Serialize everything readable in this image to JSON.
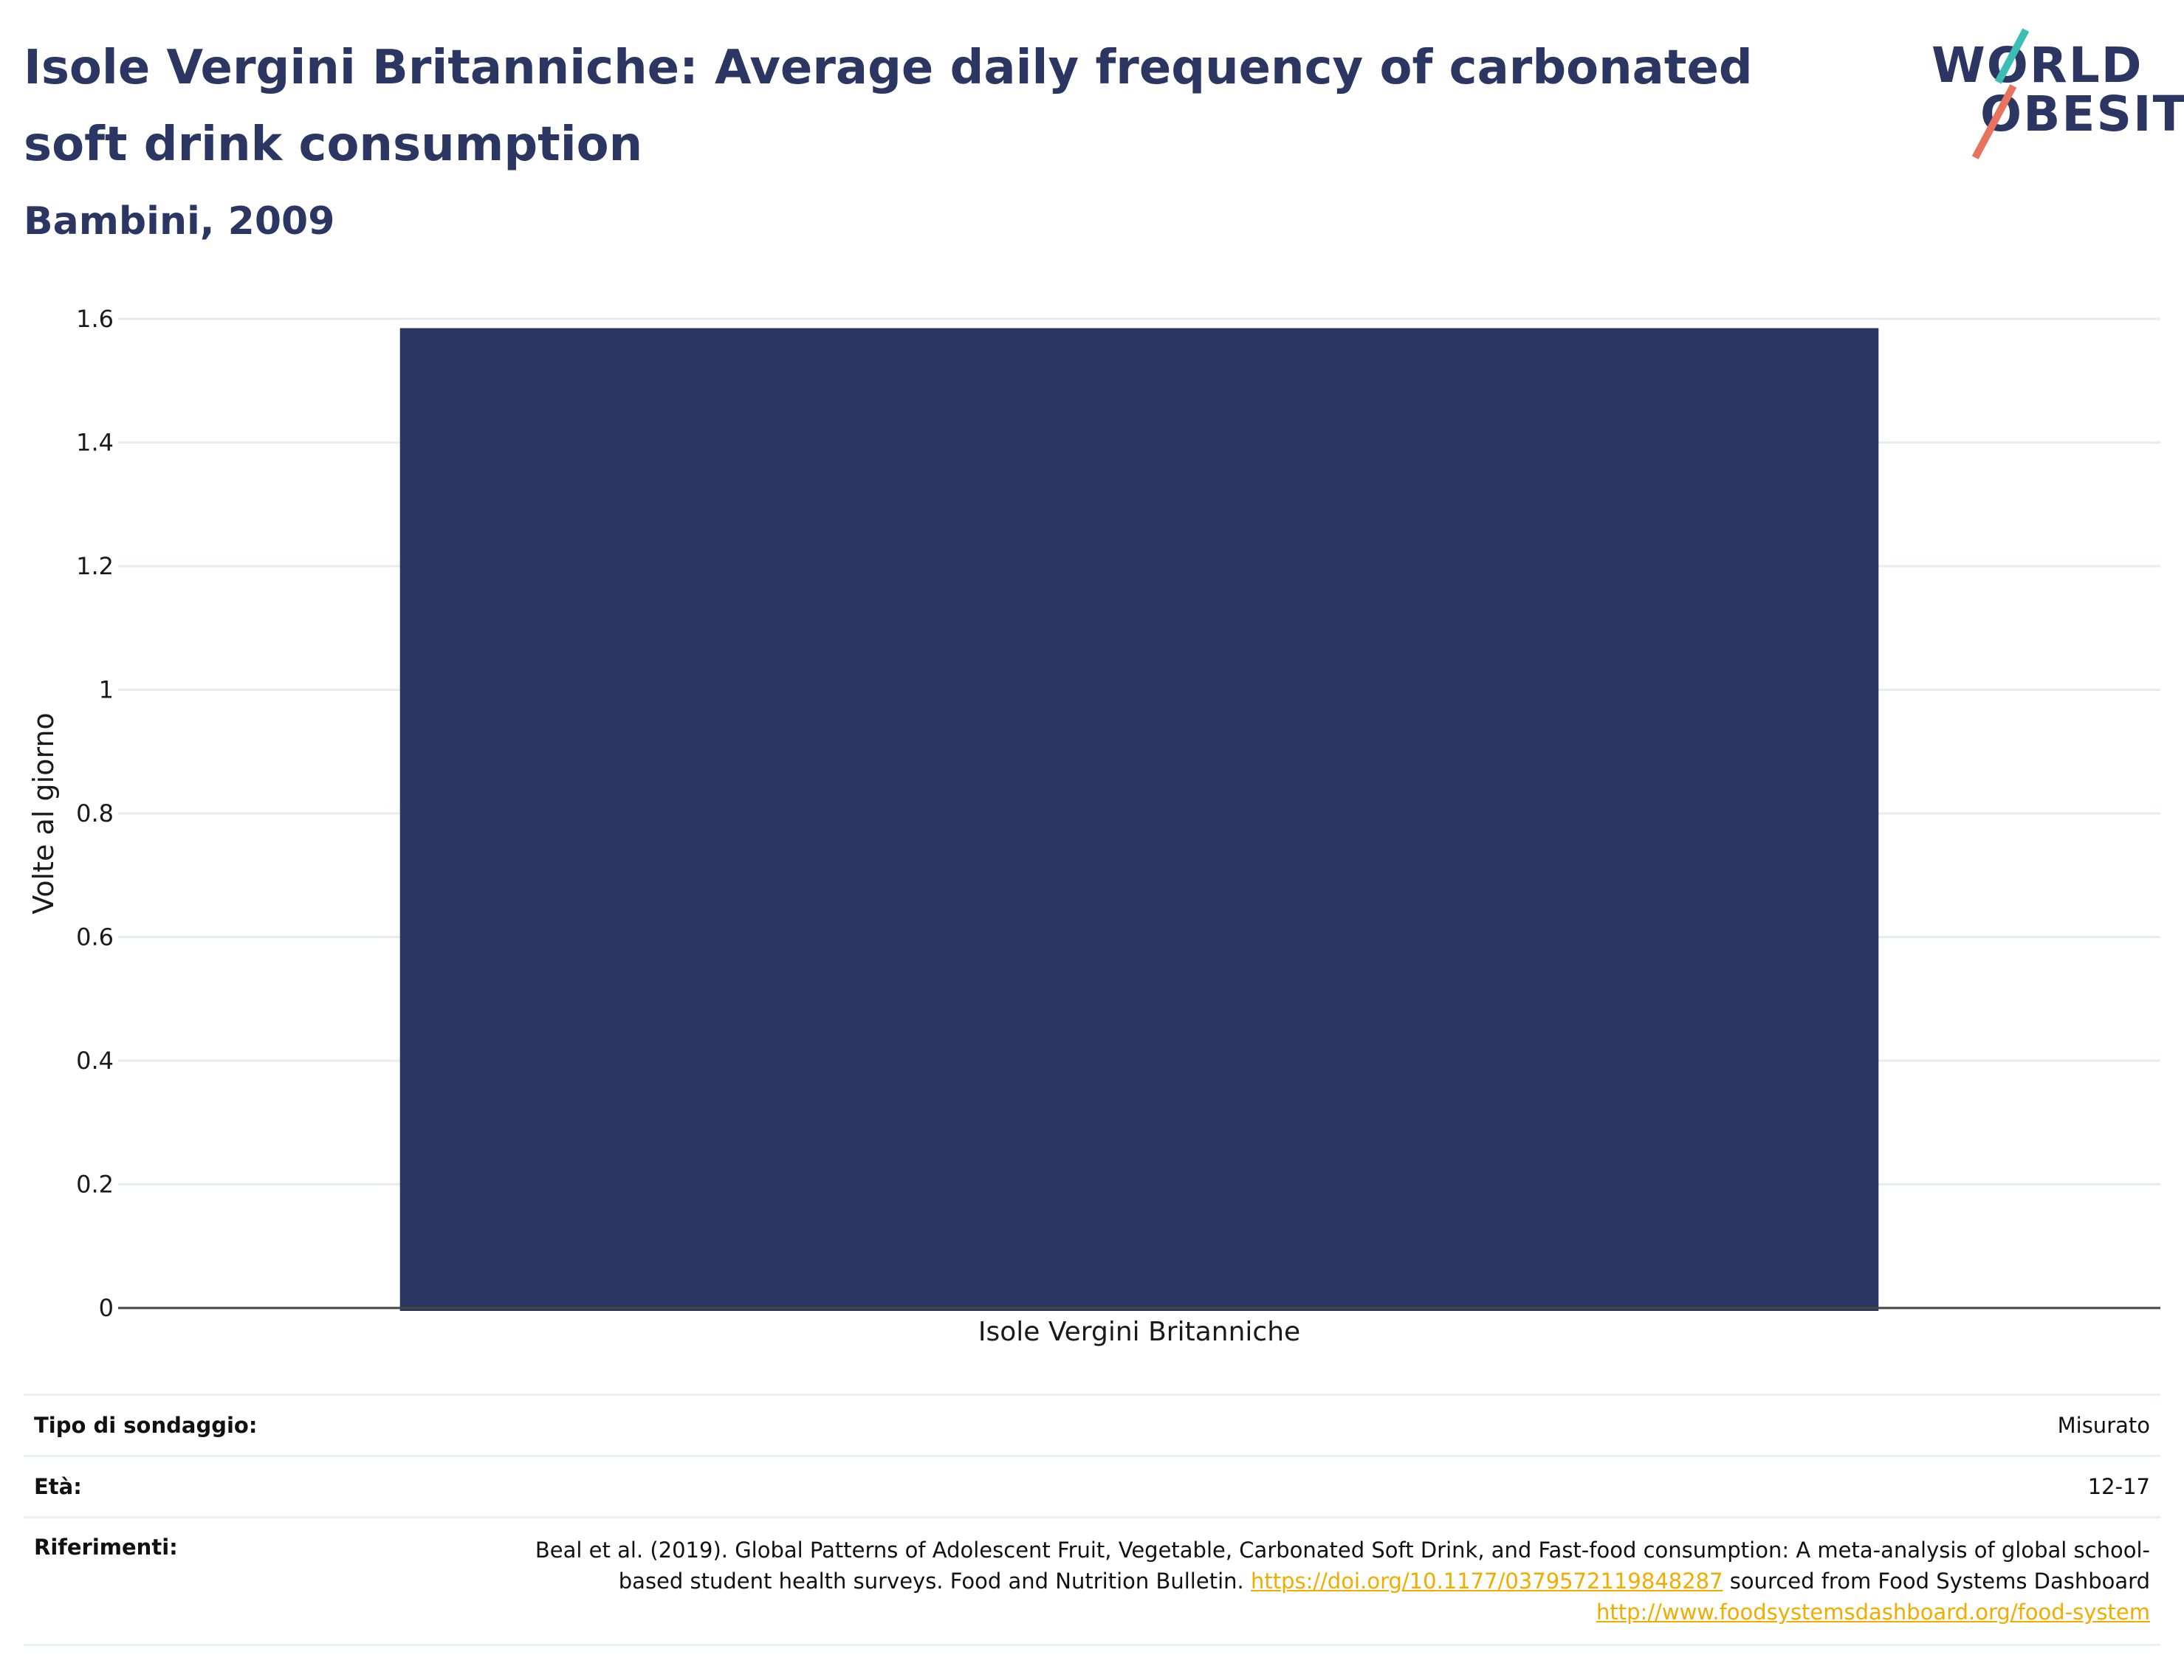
{
  "header": {
    "title": "Isole Vergini Britanniche: Average daily frequency of carbonated soft drink consumption",
    "subtitle": "Bambini, 2009"
  },
  "logo": {
    "line1": "WORLD",
    "line2": "OBESITY",
    "colors": {
      "text": "#2b3663",
      "teal": "#3bbfb4",
      "coral": "#e8735f"
    }
  },
  "chart_data": {
    "type": "bar",
    "categories": [
      "Isole Vergini Britanniche"
    ],
    "values": [
      1.585
    ],
    "ylabel": "Volte al giorno",
    "xlabel": "",
    "ylim": [
      0,
      1.6
    ],
    "yticks": [
      "0",
      "0.2",
      "0.4",
      "0.6",
      "0.8",
      "1",
      "1.2",
      "1.4",
      "1.6"
    ],
    "grid": true,
    "bar_color": "#2b3663"
  },
  "footer": {
    "survey_label": "Tipo di sondaggio:",
    "survey_value": "Misurato",
    "age_label": "Età:",
    "age_value": "12-17",
    "refs_label": "Riferimenti:",
    "refs_text_1": "Beal et al. (2019). Global Patterns of Adolescent Fruit, Vegetable, Carbonated Soft Drink, and Fast-food consumption: A meta-analysis of global school-based student health surveys. Food and Nutrition Bulletin. ",
    "refs_link_1": "https://doi.org/10.1177/0379572119848287",
    "refs_text_2": " sourced from Food Systems Dashboard ",
    "refs_link_2": "http://www.foodsystemsdashboard.org/food-system"
  }
}
